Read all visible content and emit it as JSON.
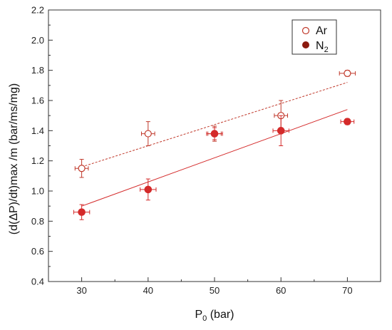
{
  "chart_data": {
    "type": "scatter",
    "xlabel": {
      "main": "P",
      "sub": "0",
      "suffix": " (bar)"
    },
    "ylabel": "(d(ΔP)/dt)max /m (bar/ms/mg)",
    "xlim": [
      25,
      75
    ],
    "ylim": [
      0.4,
      2.2
    ],
    "x_ticks": [
      "30",
      "40",
      "50",
      "60",
      "70"
    ],
    "y_ticks": [
      "0.4",
      "0.6",
      "0.8",
      "1.0",
      "1.2",
      "1.4",
      "1.6",
      "1.8",
      "2.0",
      "2.2"
    ],
    "legend_position": "top-right",
    "grid": false,
    "series": [
      {
        "name": "Ar",
        "sub": "",
        "marker": "open-circle",
        "color": "#c0392b",
        "points": [
          {
            "x": 30,
            "y": 1.15,
            "xerr": 1.0,
            "yerr": 0.06
          },
          {
            "x": 40,
            "y": 1.38,
            "xerr": 1.0,
            "yerr": 0.08
          },
          {
            "x": 50,
            "y": 1.38,
            "xerr": 1.0,
            "yerr": 0.05
          },
          {
            "x": 60,
            "y": 1.5,
            "xerr": 1.0,
            "yerr": 0.1
          },
          {
            "x": 70,
            "y": 1.78,
            "xerr": 1.2,
            "yerr": 0.02
          }
        ],
        "fit": {
          "style": "dashed",
          "x": [
            30,
            70
          ],
          "y": [
            1.16,
            1.72
          ]
        }
      },
      {
        "name": "N",
        "sub": "2",
        "marker": "filled-circle",
        "color": "#d42a2a",
        "points": [
          {
            "x": 30,
            "y": 0.86,
            "xerr": 1.2,
            "yerr": 0.05
          },
          {
            "x": 40,
            "y": 1.01,
            "xerr": 1.2,
            "yerr": 0.07
          },
          {
            "x": 50,
            "y": 1.38,
            "xerr": 1.2,
            "yerr": 0.04
          },
          {
            "x": 60,
            "y": 1.4,
            "xerr": 1.2,
            "yerr": 0.1
          },
          {
            "x": 70,
            "y": 1.46,
            "xerr": 1.0,
            "yerr": 0.02
          }
        ],
        "fit": {
          "style": "solid",
          "x": [
            30,
            70
          ],
          "y": [
            0.9,
            1.54
          ]
        }
      }
    ]
  }
}
